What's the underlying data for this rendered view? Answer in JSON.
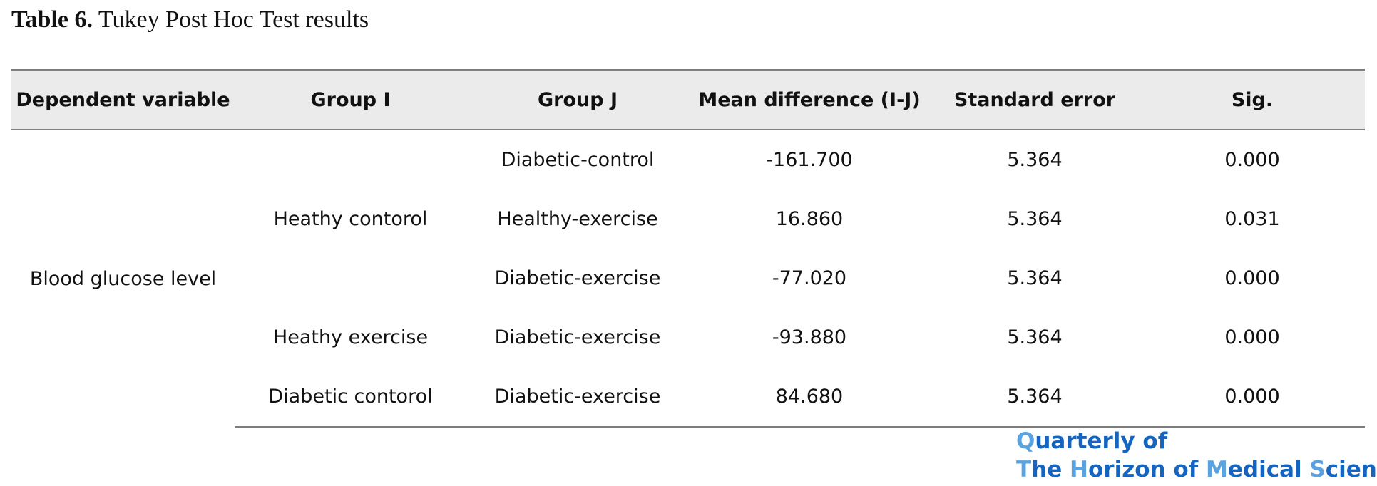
{
  "caption": {
    "number": "Table 6.",
    "title": "Tukey Post Hoc Test results"
  },
  "table": {
    "headers": [
      "Dependent variable",
      "Group I",
      "Group J",
      "Mean difference (I-J)",
      "Standard error",
      "Sig."
    ],
    "dependent_variable": "Blood glucose level",
    "groups_i": [
      "Heathy contorol",
      "Heathy exercise",
      "Diabetic contorol"
    ],
    "rows": [
      {
        "group_j": "Diabetic-control",
        "mean_diff": "-161.700",
        "std_error": "5.364",
        "sig": "0.000"
      },
      {
        "group_j": "Healthy-exercise",
        "mean_diff": "16.860",
        "std_error": "5.364",
        "sig": "0.031"
      },
      {
        "group_j": "Diabetic-exercise",
        "mean_diff": "-77.020",
        "std_error": "5.364",
        "sig": "0.000"
      },
      {
        "group_j": "Diabetic-exercise",
        "mean_diff": "-93.880",
        "std_error": "5.364",
        "sig": "0.000"
      },
      {
        "group_j": "Diabetic-exercise",
        "mean_diff": "84.680",
        "std_error": "5.364",
        "sig": "0.000"
      }
    ]
  },
  "logo": {
    "line1": "Quarterly of",
    "line2_parts": [
      "T",
      "he ",
      "H",
      "orizon of ",
      "M",
      "edical ",
      "S",
      "ciences"
    ],
    "colors": {
      "dark": "#1565c0",
      "light": "#5ba3e0"
    }
  }
}
